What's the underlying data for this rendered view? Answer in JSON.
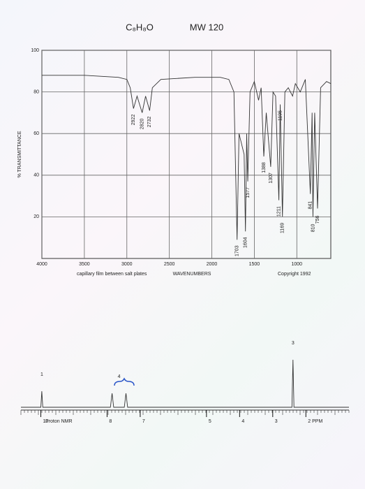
{
  "header": {
    "formula": "C₈H₈O",
    "mw": "MW 120"
  },
  "chart_data": [
    {
      "type": "line",
      "x_label": "WAVENUMBERS",
      "y_label": "% TRANSMITTANCE",
      "note": "capillary film between salt plates",
      "copyright": "Copyright 1992",
      "color": "#333333",
      "grid": true,
      "xlim": [
        4000,
        600
      ],
      "ylim": [
        0,
        100
      ],
      "xticks": [
        4000,
        3500,
        3000,
        2500,
        2000,
        1500,
        1000
      ],
      "yticks": [
        20,
        40,
        60,
        80,
        100
      ],
      "x": [
        4000,
        3500,
        3100,
        3000,
        2960,
        2922,
        2880,
        2850,
        2820,
        2780,
        2732,
        2700,
        2600,
        2200,
        2000,
        1900,
        1800,
        1740,
        1703,
        1680,
        1620,
        1604,
        1590,
        1577,
        1550,
        1500,
        1450,
        1420,
        1388,
        1360,
        1307,
        1280,
        1250,
        1211,
        1195,
        1169,
        1140,
        1100,
        1050,
        1017,
        960,
        900,
        841,
        820,
        810,
        790,
        756,
        720,
        650,
        600
      ],
      "values": [
        88,
        88,
        87,
        86,
        82,
        72,
        78,
        74,
        70,
        78,
        71,
        82,
        86,
        87,
        87,
        87,
        86,
        80,
        9,
        60,
        50,
        13,
        60,
        37,
        80,
        85,
        76,
        82,
        49,
        70,
        44,
        80,
        78,
        28,
        74,
        20,
        80,
        82,
        78,
        84,
        80,
        86,
        31,
        70,
        20,
        70,
        24,
        82,
        85,
        84
      ],
      "peaks": [
        2922,
        2820,
        2732,
        1703,
        1604,
        1577,
        1388,
        1307,
        1211,
        1195,
        1169,
        841,
        810,
        756
      ]
    },
    {
      "type": "line",
      "label": "Proton NMR",
      "color": "#333333",
      "grid": false,
      "xlim": [
        10.6,
        0.7
      ],
      "ylim": [
        0,
        100
      ],
      "xticks": [
        10,
        8,
        7,
        5,
        4,
        3,
        {
          "value": 2,
          "label": "2 PPM"
        }
      ],
      "x": [
        10.6,
        10.0,
        9.97,
        9.94,
        7.9,
        7.85,
        7.8,
        7.48,
        7.43,
        7.38,
        2.42,
        2.39,
        2.36,
        0.7
      ],
      "values": [
        0,
        0,
        23,
        0,
        0,
        20,
        0,
        0,
        20,
        0,
        0,
        68,
        0,
        0
      ],
      "integrals": [
        1,
        4,
        3
      ],
      "integral_x": [
        9.97,
        7.64,
        2.39
      ]
    }
  ]
}
